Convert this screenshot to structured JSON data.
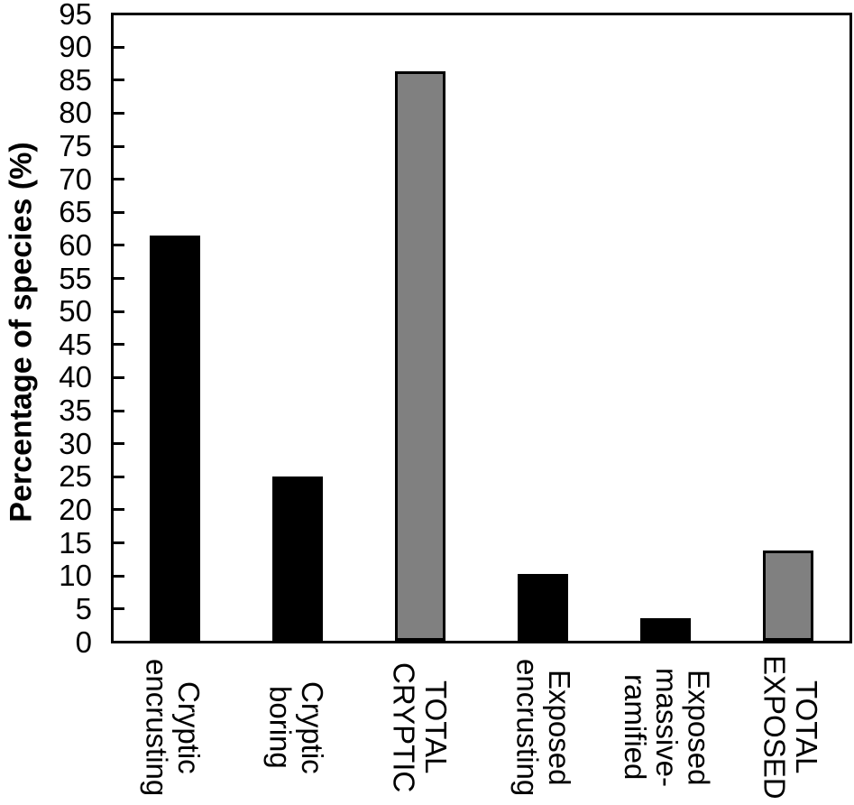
{
  "chart_data": {
    "type": "bar",
    "title": "",
    "xlabel": "",
    "ylabel": "Percentage of species (%)",
    "ylim": [
      0,
      95
    ],
    "ytick_step": 5,
    "grid": false,
    "legend": "none",
    "categories": [
      "Cryptic\nencrusting",
      "Cryptic\nboring",
      "TOTAL\nCRYPTIC",
      "Exposed\nencrusting",
      "Exposed\nmassive-\nramified",
      "TOTAL\nEXPOSED"
    ],
    "values": [
      61.5,
      25,
      86.5,
      10.2,
      3.4,
      13.7
    ],
    "bar_colors": [
      "#000000",
      "#000000",
      "#808080",
      "#000000",
      "#000000",
      "#808080"
    ],
    "bar_outline_color": "#000000",
    "axis_color": "#000000",
    "background_color": "#ffffff"
  }
}
